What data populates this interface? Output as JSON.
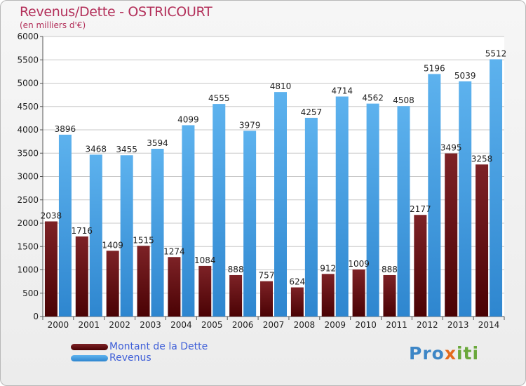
{
  "title": "Revenus/Dette - OSTRICOURT",
  "subtitle": "(en milliers d'€)",
  "logo": {
    "p": "Pro",
    "x": "x",
    "i": "iti"
  },
  "colors": {
    "dette": "#6e0f10",
    "revenus": "#3a95dc",
    "title": "#b3305a",
    "legend_text": "#4060d8"
  },
  "chart_data": {
    "type": "bar",
    "title": "Revenus/Dette - OSTRICOURT",
    "ylabel": "(en milliers d'€)",
    "xlabel": "",
    "ylim": [
      0,
      6000
    ],
    "yticks": [
      0,
      500,
      1000,
      1500,
      2000,
      2500,
      3000,
      3500,
      4000,
      4500,
      5000,
      5500,
      6000
    ],
    "grid": true,
    "legend_position": "bottom-left",
    "categories": [
      "2000",
      "2001",
      "2002",
      "2003",
      "2004",
      "2005",
      "2006",
      "2007",
      "2008",
      "2009",
      "2010",
      "2011",
      "2012",
      "2013",
      "2014"
    ],
    "series": [
      {
        "name": "Montant de la Dette",
        "color": "#6e0f10",
        "values": [
          2038,
          1716,
          1409,
          1515,
          1274,
          1084,
          888,
          757,
          624,
          912,
          1009,
          888,
          2177,
          3495,
          3258
        ],
        "labels": [
          "2038",
          "1716",
          "1409",
          "1515",
          "1274",
          "1084",
          "888",
          "757",
          "624",
          "912",
          "1009",
          "888",
          "2177",
          "3495",
          "3258"
        ]
      },
      {
        "name": "Revenus",
        "color": "#3a95dc",
        "values": [
          3896,
          3468,
          3455,
          3594,
          4099,
          4555,
          3979,
          4810,
          4257,
          4714,
          4562,
          4508,
          5196,
          5039,
          5512
        ],
        "labels": [
          "3896",
          "3468",
          "3455",
          "3594",
          "4099",
          "4555",
          "3979",
          "4810",
          "4257",
          "4714",
          "4562",
          "4508",
          "5196",
          "5039",
          "5512"
        ]
      }
    ]
  }
}
